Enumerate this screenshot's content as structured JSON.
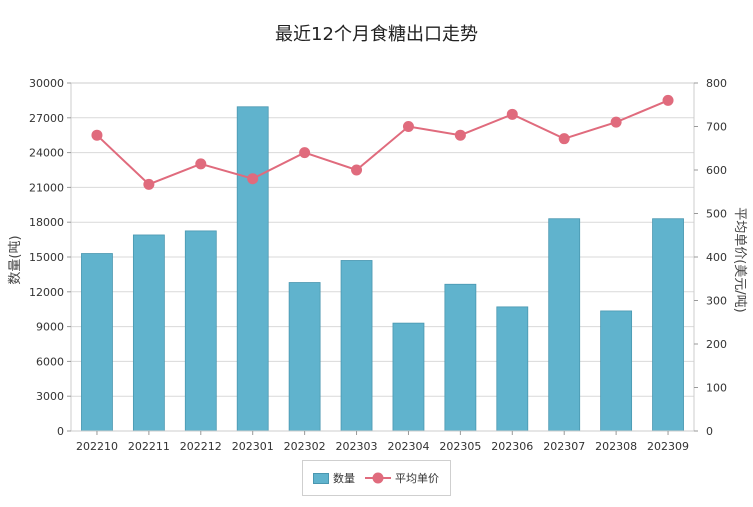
{
  "chart_data": {
    "type": "bar",
    "title": "最近12个月食糖出口走势",
    "categories": [
      "202210",
      "202211",
      "202212",
      "202301",
      "202302",
      "202303",
      "202304",
      "202305",
      "202306",
      "202307",
      "202308",
      "202309"
    ],
    "series": [
      {
        "name": "数量",
        "type": "bar",
        "axis": "left",
        "values": [
          15300,
          16900,
          17250,
          27950,
          12800,
          14700,
          9300,
          12650,
          10700,
          18300,
          10350,
          18300
        ]
      },
      {
        "name": "平均单价",
        "type": "line",
        "axis": "right",
        "values": [
          680,
          567,
          614,
          580,
          640,
          600,
          700,
          680,
          728,
          672,
          710,
          760
        ]
      }
    ],
    "ylabel": "数量(吨)",
    "y2label": "平均单价(美元/吨)",
    "ylim": [
      0,
      30000
    ],
    "y2lim": [
      0,
      800
    ],
    "yticks": [
      "0",
      "3000",
      "6000",
      "9000",
      "12000",
      "15000",
      "18000",
      "21000",
      "24000",
      "27000",
      "30000"
    ],
    "y2ticks": [
      "0",
      "100",
      "200",
      "300",
      "400",
      "500",
      "600",
      "700",
      "800"
    ],
    "grid": true,
    "legend_position": "bottom-center",
    "colors": {
      "bar": "#60b3cd",
      "bar_border": "#4a97b0",
      "line": "#e06b7d",
      "grid": "#d9d9d9"
    }
  }
}
